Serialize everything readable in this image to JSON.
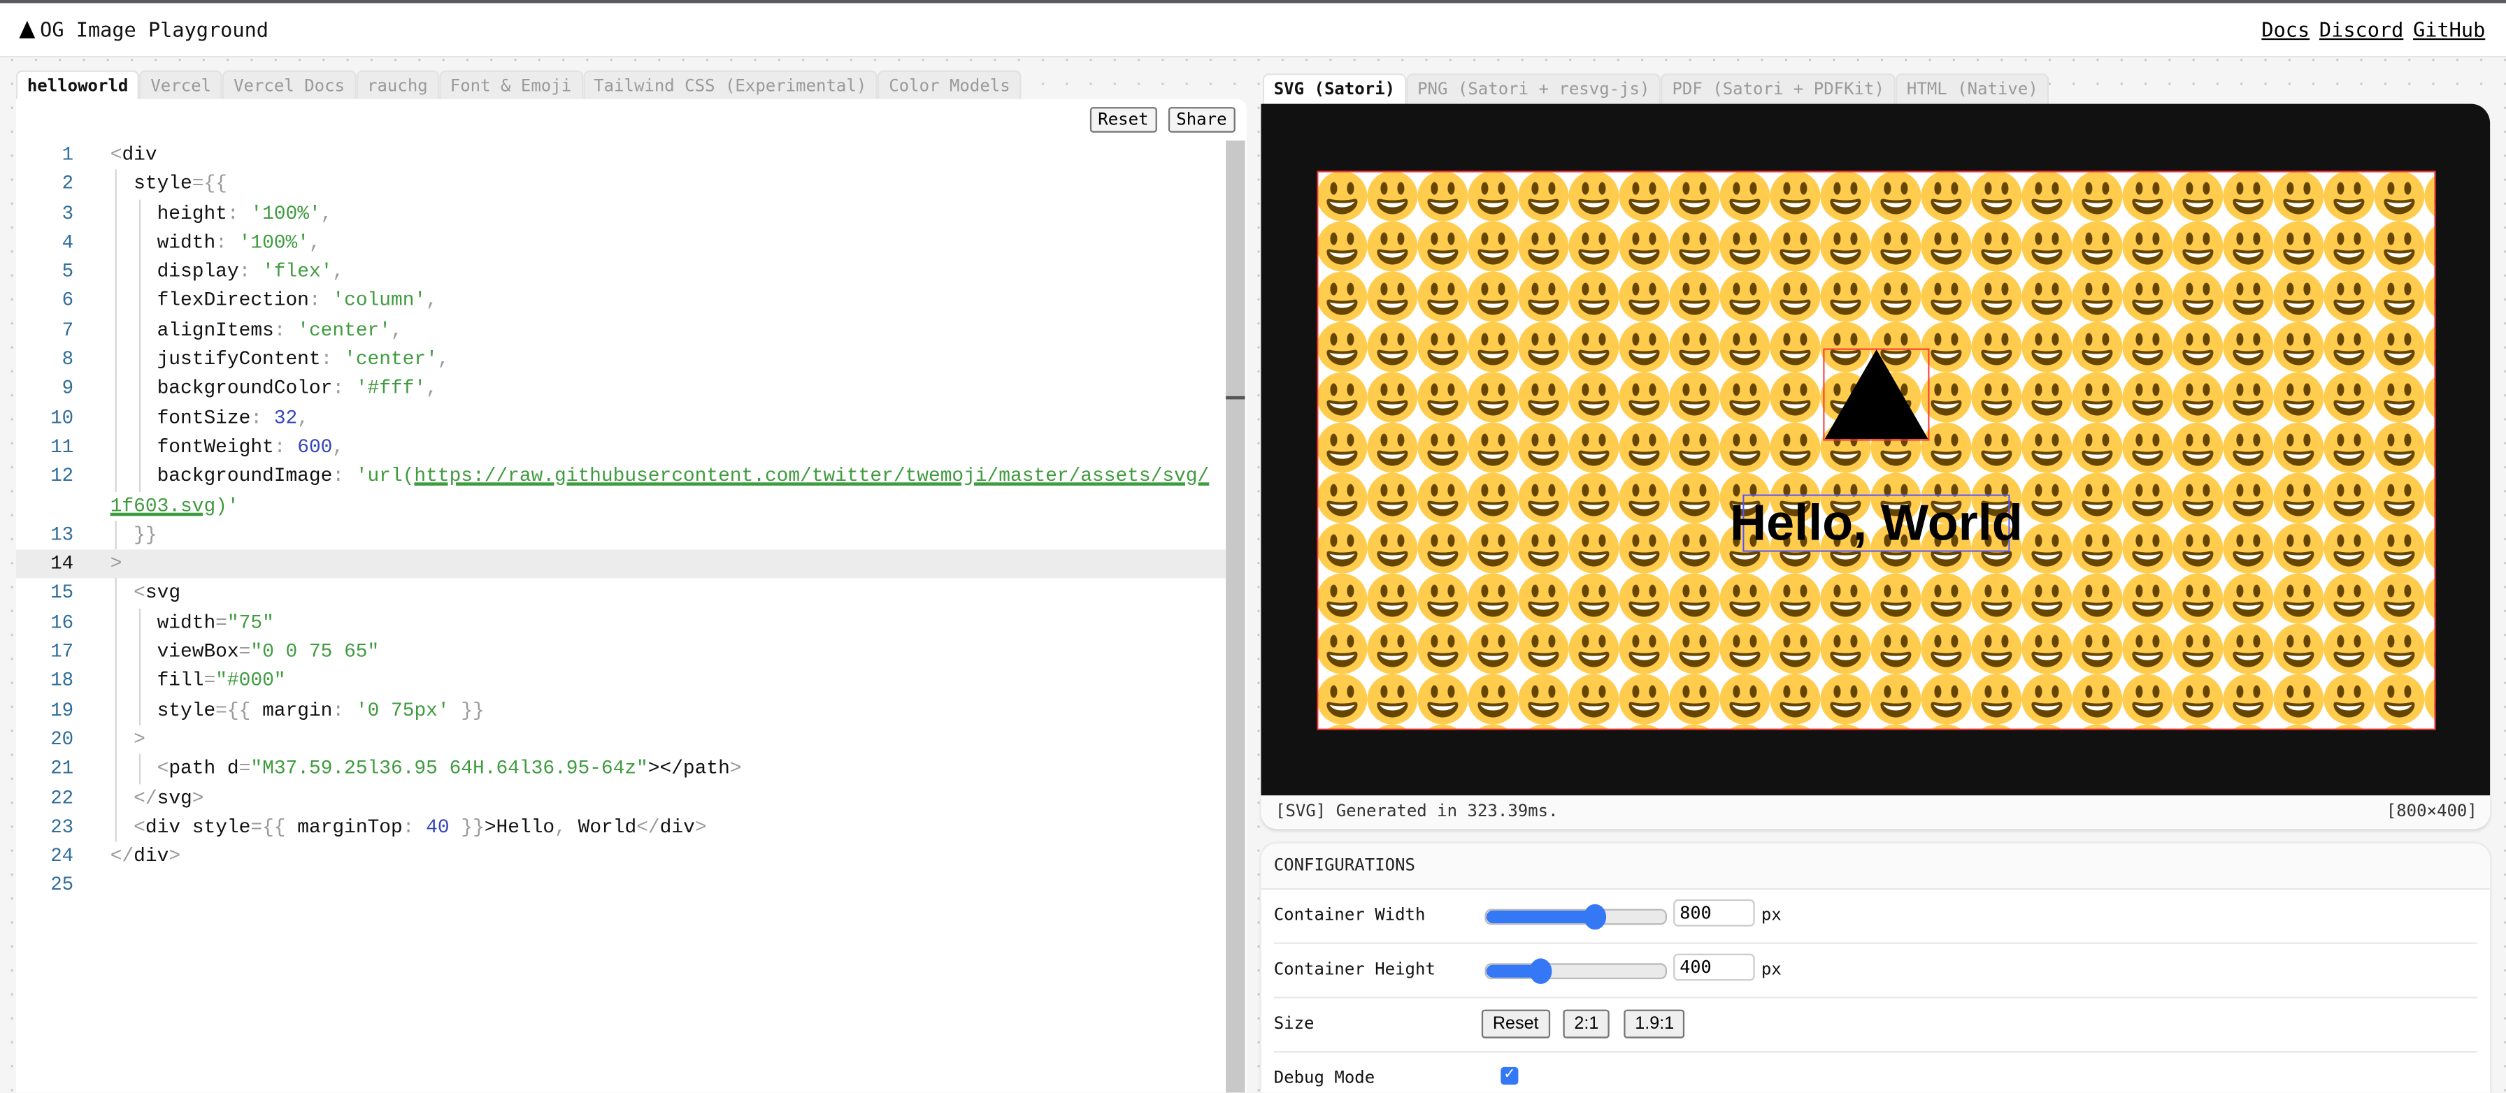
{
  "header": {
    "title": "OG Image Playground",
    "logo_icon": "triangle-icon",
    "links": [
      "Docs",
      "Discord",
      "GitHub"
    ]
  },
  "editor": {
    "tabs": [
      "helloworld",
      "Vercel",
      "Vercel Docs",
      "rauchg",
      "Font & Emoji",
      "Tailwind CSS (Experimental)",
      "Color Models"
    ],
    "active_tab": "helloworld",
    "reset_label": "Reset",
    "share_label": "Share",
    "highlighted_line": 14,
    "lines": [
      [
        [
          "<",
          "p"
        ],
        [
          "div",
          ""
        ]
      ],
      [
        [
          "  style",
          ""
        ],
        [
          "={{",
          "p"
        ]
      ],
      [
        [
          "    height",
          ""
        ],
        [
          ": ",
          "p"
        ],
        [
          "'100%'",
          "s"
        ],
        [
          ",",
          "p"
        ]
      ],
      [
        [
          "    width",
          ""
        ],
        [
          ": ",
          "p"
        ],
        [
          "'100%'",
          "s"
        ],
        [
          ",",
          "p"
        ]
      ],
      [
        [
          "    display",
          ""
        ],
        [
          ": ",
          "p"
        ],
        [
          "'flex'",
          "s"
        ],
        [
          ",",
          "p"
        ]
      ],
      [
        [
          "    flexDirection",
          ""
        ],
        [
          ": ",
          "p"
        ],
        [
          "'column'",
          "s"
        ],
        [
          ",",
          "p"
        ]
      ],
      [
        [
          "    alignItems",
          ""
        ],
        [
          ": ",
          "p"
        ],
        [
          "'center'",
          "s"
        ],
        [
          ",",
          "p"
        ]
      ],
      [
        [
          "    justifyContent",
          ""
        ],
        [
          ": ",
          "p"
        ],
        [
          "'center'",
          "s"
        ],
        [
          ",",
          "p"
        ]
      ],
      [
        [
          "    backgroundColor",
          ""
        ],
        [
          ": ",
          "p"
        ],
        [
          "'#fff'",
          "s"
        ],
        [
          ",",
          "p"
        ]
      ],
      [
        [
          "    fontSize",
          ""
        ],
        [
          ": ",
          "p"
        ],
        [
          "32",
          "n"
        ],
        [
          ",",
          "p"
        ]
      ],
      [
        [
          "    fontWeight",
          ""
        ],
        [
          ": ",
          "p"
        ],
        [
          "600",
          "n"
        ],
        [
          ",",
          "p"
        ]
      ],
      [
        [
          "    backgroundImage",
          ""
        ],
        [
          ": ",
          "p"
        ],
        [
          "'url(",
          "s"
        ],
        [
          "https://raw.githubusercontent.com/twitter/twemoji/master/assets/svg/",
          "u"
        ],
        [
          "1f603.svg",
          "u",
          "wrap"
        ],
        [
          ")'",
          "s"
        ]
      ],
      [
        [
          "  }}",
          "p"
        ]
      ],
      [
        [
          ">",
          "p"
        ]
      ],
      [
        [
          "  <",
          "p"
        ],
        [
          "svg",
          ""
        ]
      ],
      [
        [
          "    width",
          ""
        ],
        [
          "=",
          "p"
        ],
        [
          "\"75\"",
          "s"
        ]
      ],
      [
        [
          "    viewBox",
          ""
        ],
        [
          "=",
          "p"
        ],
        [
          "\"0 0 75 65\"",
          "s"
        ]
      ],
      [
        [
          "    fill",
          ""
        ],
        [
          "=",
          "p"
        ],
        [
          "\"#000\"",
          "s"
        ]
      ],
      [
        [
          "    style",
          ""
        ],
        [
          "={{",
          "p"
        ],
        [
          " margin",
          ""
        ],
        [
          ": ",
          "p"
        ],
        [
          "'0 75px'",
          "s"
        ],
        [
          " }}",
          "p"
        ]
      ],
      [
        [
          "  >",
          "p"
        ]
      ],
      [
        [
          "    <",
          "p"
        ],
        [
          "path d",
          ""
        ],
        [
          "=",
          "p"
        ],
        [
          "\"M37.59.25l36.95 64H.64l36.95-64z\"",
          "s"
        ],
        [
          "></path",
          ""
        ],
        [
          ">",
          "p"
        ]
      ],
      [
        [
          "  </",
          "p"
        ],
        [
          "svg",
          ""
        ],
        [
          ">",
          "p"
        ]
      ],
      [
        [
          "  <",
          "p"
        ],
        [
          "div style",
          ""
        ],
        [
          "={{",
          "p"
        ],
        [
          " marginTop",
          ""
        ],
        [
          ": ",
          "p"
        ],
        [
          "40",
          "n"
        ],
        [
          " }}",
          "p"
        ],
        [
          ">Hello",
          ""
        ],
        [
          ",",
          "p"
        ],
        [
          " World",
          ""
        ],
        [
          "</",
          "p"
        ],
        [
          "div",
          ""
        ],
        [
          ">",
          "p"
        ]
      ],
      [
        [
          "</",
          "p"
        ],
        [
          "div",
          ""
        ],
        [
          ">",
          "p"
        ]
      ],
      []
    ]
  },
  "preview": {
    "tabs": [
      "SVG (Satori)",
      "PNG (Satori + resvg-js)",
      "PDF (Satori + PDFKit)",
      "HTML (Native)"
    ],
    "active_tab": "SVG (Satori)",
    "image_text": "Hello, World",
    "background_emoji_icon": "grinning-face-emoji-icon",
    "status_text": "[SVG] Generated in 323.39ms.",
    "size_text": "[800×400]"
  },
  "config": {
    "title": "CONFIGURATIONS",
    "width": {
      "label": "Container Width",
      "value": "800",
      "unit": "px",
      "slider_fraction": 0.61
    },
    "height": {
      "label": "Container Height",
      "value": "400",
      "unit": "px",
      "slider_fraction": 0.3
    },
    "size": {
      "label": "Size",
      "buttons": [
        "Reset",
        "2:1",
        "1.9:1"
      ]
    },
    "debug": {
      "label": "Debug Mode",
      "checked": true
    },
    "accent_color": "#3478f6"
  }
}
